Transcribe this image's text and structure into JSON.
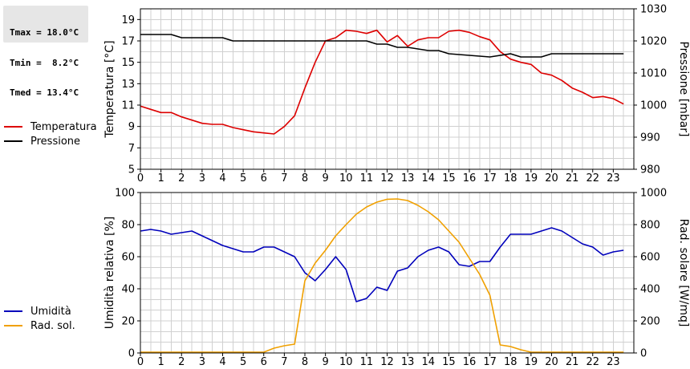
{
  "stats": {
    "tmax": "Tmax = 18.0°C",
    "tmin": "Tmin =  8.2°C",
    "tmed": "Tmed = 13.4°C"
  },
  "colors": {
    "temp": "#dd0000",
    "pressure": "#000000",
    "humidity": "#0000bb",
    "radiation": "#f0a000",
    "grid": "#d0d0d0"
  },
  "chart_data": [
    {
      "type": "line",
      "xlim": [
        0,
        24
      ],
      "x_ticks": [
        "0",
        "1",
        "2",
        "3",
        "4",
        "5",
        "6",
        "7",
        "8",
        "9",
        "10",
        "11",
        "12",
        "13",
        "14",
        "15",
        "16",
        "17",
        "18",
        "19",
        "20",
        "21",
        "22",
        "23"
      ],
      "y_left": {
        "label": "Temperatura [°C]",
        "lim": [
          5,
          20
        ],
        "ticks": [
          "5",
          "7",
          "9",
          "11",
          "13",
          "15",
          "17",
          "19"
        ]
      },
      "y_right": {
        "label": "Pressione [mbar]",
        "lim": [
          980,
          1030
        ],
        "ticks": [
          "980",
          "990",
          "1000",
          "1010",
          "1020",
          "1030"
        ]
      },
      "grid": true,
      "legend_position": "left",
      "series": [
        {
          "name": "Temperatura",
          "axis": "left",
          "color_key": "temp",
          "x": [
            0,
            0.5,
            1,
            1.5,
            2,
            2.5,
            3,
            3.5,
            4,
            4.5,
            5,
            5.5,
            6,
            6.5,
            7,
            7.5,
            8,
            8.5,
            9,
            9.5,
            10,
            10.5,
            11,
            11.5,
            12,
            12.5,
            13,
            13.5,
            14,
            14.5,
            15,
            15.5,
            16,
            16.5,
            17,
            17.5,
            18,
            18.5,
            19,
            19.5,
            20,
            20.5,
            21,
            21.5,
            22,
            22.5,
            23,
            23.5
          ],
          "y": [
            10.9,
            10.6,
            10.3,
            10.3,
            9.9,
            9.6,
            9.3,
            9.2,
            9.2,
            8.9,
            8.7,
            8.5,
            8.4,
            8.3,
            9.0,
            10.0,
            12.6,
            15.0,
            17.0,
            17.3,
            18.0,
            17.9,
            17.7,
            18.0,
            16.9,
            17.5,
            16.5,
            17.1,
            17.3,
            17.3,
            17.9,
            18.0,
            17.8,
            17.4,
            17.1,
            16.0,
            15.3,
            15.0,
            14.8,
            14.0,
            13.8,
            13.3,
            12.6,
            12.2,
            11.7,
            11.8,
            11.6,
            11.1
          ]
        },
        {
          "name": "Pressione",
          "axis": "right",
          "color_key": "pressure",
          "x": [
            0,
            1.5,
            2,
            4,
            4.5,
            11,
            11.5,
            12,
            12.5,
            13,
            14,
            14.5,
            15,
            17,
            18,
            18.5,
            19.5,
            20,
            23.5
          ],
          "y": [
            1022,
            1022,
            1021,
            1021,
            1020,
            1020,
            1019,
            1019,
            1018,
            1018,
            1017,
            1017,
            1016,
            1015,
            1016,
            1015,
            1015,
            1016,
            1016
          ]
        }
      ]
    },
    {
      "type": "line",
      "xlim": [
        0,
        24
      ],
      "x_ticks": [
        "0",
        "1",
        "2",
        "3",
        "4",
        "5",
        "6",
        "7",
        "8",
        "9",
        "10",
        "11",
        "12",
        "13",
        "14",
        "15",
        "16",
        "17",
        "18",
        "19",
        "20",
        "21",
        "22",
        "23"
      ],
      "y_left": {
        "label": "Umidità relativa [%]",
        "lim": [
          0,
          100
        ],
        "ticks": [
          "0",
          "20",
          "40",
          "60",
          "80",
          "100"
        ]
      },
      "y_right": {
        "label": "Rad. solare [W/mq]",
        "lim": [
          0,
          1000
        ],
        "ticks": [
          "0",
          "200",
          "400",
          "600",
          "800",
          "1000"
        ]
      },
      "grid": true,
      "legend_position": "left",
      "series": [
        {
          "name": "Umidità",
          "axis": "left",
          "color_key": "humidity",
          "x": [
            0,
            0.5,
            1,
            1.5,
            2,
            2.5,
            3,
            3.5,
            4,
            4.5,
            5,
            5.5,
            6,
            6.5,
            7,
            7.5,
            8,
            8.5,
            9,
            9.5,
            10,
            10.5,
            11,
            11.5,
            12,
            12.5,
            13,
            13.5,
            14,
            14.5,
            15,
            15.5,
            16,
            16.5,
            17,
            17.5,
            18,
            18.5,
            19,
            19.5,
            20,
            20.5,
            21,
            21.5,
            22,
            22.5,
            23,
            23.5
          ],
          "y": [
            76,
            77,
            76,
            74,
            75,
            76,
            73,
            70,
            67,
            65,
            63,
            63,
            66,
            66,
            63,
            60,
            50,
            45,
            52,
            60,
            52,
            32,
            34,
            41,
            39,
            51,
            53,
            60,
            64,
            66,
            63,
            55,
            54,
            57,
            57,
            66,
            74,
            74,
            74,
            76,
            78,
            76,
            72,
            68,
            66,
            61,
            63,
            64
          ]
        },
        {
          "name": "Rad. sol.",
          "axis": "right",
          "color_key": "radiation",
          "x": [
            0,
            0.5,
            1,
            1.5,
            2,
            2.5,
            3,
            3.5,
            4,
            4.5,
            5,
            5.5,
            6,
            6.5,
            7,
            7.5,
            8,
            8.5,
            9,
            9.5,
            10,
            10.5,
            11,
            11.5,
            12,
            12.5,
            13,
            13.5,
            14,
            14.5,
            15,
            15.5,
            16,
            16.5,
            17,
            17.5,
            18,
            18.5,
            19,
            19.5,
            20,
            20.5,
            21,
            21.5,
            22,
            22.5,
            23,
            23.5
          ],
          "y": [
            5,
            5,
            5,
            5,
            5,
            5,
            5,
            5,
            5,
            5,
            5,
            5,
            5,
            30,
            45,
            55,
            450,
            560,
            640,
            730,
            800,
            865,
            910,
            940,
            958,
            960,
            950,
            920,
            880,
            830,
            760,
            690,
            590,
            490,
            360,
            50,
            40,
            20,
            5,
            5,
            5,
            5,
            5,
            5,
            5,
            5,
            5,
            5
          ]
        }
      ]
    }
  ]
}
